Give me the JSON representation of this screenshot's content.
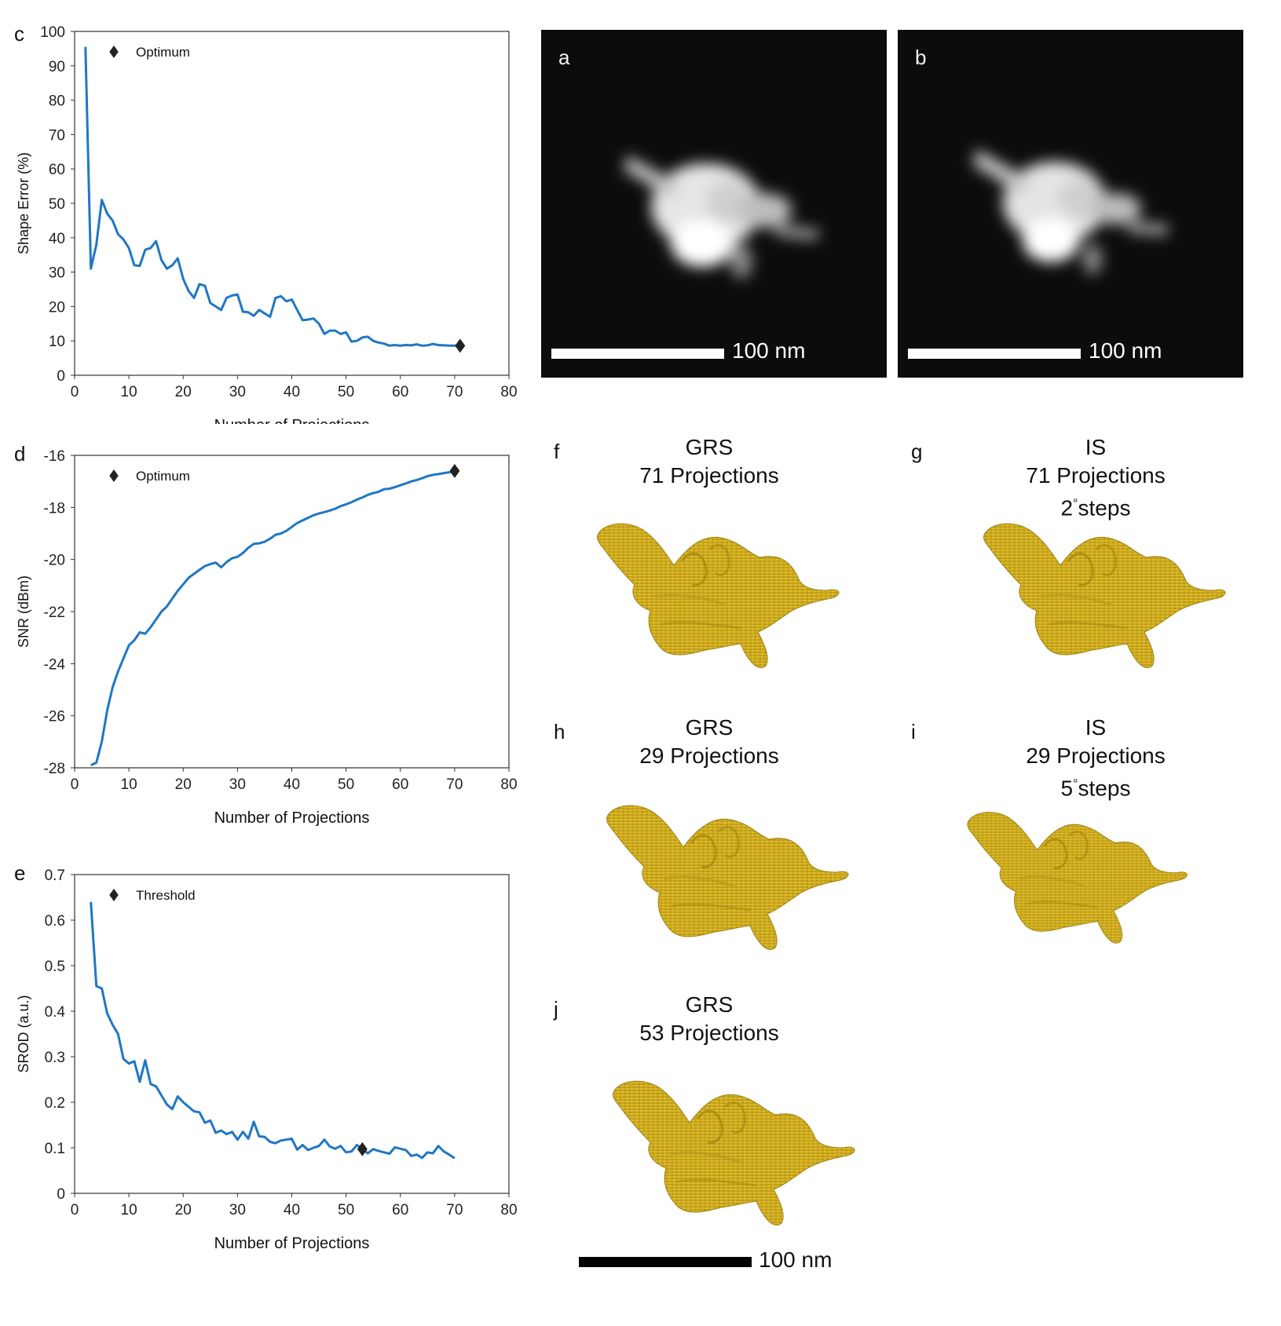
{
  "chart_data": [
    {
      "id": "c",
      "type": "line",
      "panel_label": "c",
      "xlabel": "Number of Projections",
      "ylabel": "Shape Error (%)",
      "xlim": [
        0,
        80
      ],
      "ylim": [
        0,
        100
      ],
      "xticks": [
        0,
        10,
        20,
        30,
        40,
        50,
        60,
        70,
        80
      ],
      "yticks": [
        0,
        10,
        20,
        30,
        40,
        50,
        60,
        70,
        80,
        90,
        100
      ],
      "ytick_labels": [
        "0",
        "10",
        "20",
        "30",
        "40",
        "50",
        "60",
        "70",
        "80",
        "90",
        "100"
      ],
      "legend": {
        "label": "Optimum",
        "position": "top-left"
      },
      "color": "#1f77c4",
      "series": [
        {
          "name": "Shape Error",
          "x": [
            2,
            3,
            4,
            5,
            6,
            7,
            8,
            9,
            10,
            11,
            12,
            13,
            14,
            15,
            16,
            17,
            18,
            19,
            20,
            21,
            22,
            23,
            24,
            25,
            26,
            27,
            28,
            29,
            30,
            31,
            32,
            33,
            34,
            35,
            36,
            37,
            38,
            39,
            40,
            41,
            42,
            43,
            44,
            45,
            46,
            47,
            48,
            49,
            50,
            51,
            52,
            53,
            54,
            55,
            56,
            57,
            58,
            59,
            60,
            61,
            62,
            63,
            64,
            65,
            66,
            67,
            68,
            69,
            70,
            71
          ],
          "y": [
            95.5,
            31,
            38,
            51,
            47,
            45,
            41,
            39.5,
            37,
            32,
            31.8,
            36.5,
            37,
            39,
            33.5,
            31,
            32,
            34,
            28,
            24.5,
            22.5,
            26.5,
            26,
            21,
            20,
            19,
            22.5,
            23.2,
            23.5,
            18.5,
            18.3,
            17.3,
            19,
            18,
            17,
            22.5,
            23,
            21.5,
            22,
            19,
            16,
            16.2,
            16.5,
            15,
            12,
            13,
            13,
            12,
            12.5,
            9.8,
            10,
            11,
            11.2,
            10,
            9.5,
            9.2,
            8.6,
            8.8,
            8.6,
            8.8,
            8.7,
            9,
            8.6,
            8.7,
            9.1,
            8.8,
            8.7,
            8.6,
            8.6,
            8.6
          ]
        }
      ],
      "marker": {
        "x": 71,
        "y": 8.6,
        "label": "Optimum"
      }
    },
    {
      "id": "d",
      "type": "line",
      "panel_label": "d",
      "xlabel": "Number of Projections",
      "ylabel": "SNR (dBm)",
      "xlim": [
        0,
        80
      ],
      "ylim": [
        -28,
        -16
      ],
      "xticks": [
        0,
        10,
        20,
        30,
        40,
        50,
        60,
        70,
        80
      ],
      "yticks": [
        -28,
        -26,
        -24,
        -22,
        -20,
        -18,
        -16
      ],
      "ytick_labels": [
        "-28",
        "-26",
        "-24",
        "-22",
        "-20",
        "-18",
        "-16"
      ],
      "legend": {
        "label": "Optimum",
        "position": "top-left"
      },
      "color": "#1f77c4",
      "series": [
        {
          "name": "SNR",
          "x": [
            3,
            4,
            5,
            6,
            7,
            8,
            9,
            10,
            11,
            12,
            13,
            14,
            15,
            16,
            17,
            18,
            19,
            20,
            21,
            22,
            23,
            24,
            25,
            26,
            27,
            28,
            29,
            30,
            31,
            32,
            33,
            34,
            35,
            36,
            37,
            38,
            39,
            40,
            41,
            42,
            43,
            44,
            45,
            46,
            47,
            48,
            49,
            50,
            51,
            52,
            53,
            54,
            55,
            56,
            57,
            58,
            59,
            60,
            61,
            62,
            63,
            64,
            65,
            66,
            67,
            68,
            69,
            70
          ],
          "y": [
            -27.9,
            -27.8,
            -27,
            -25.8,
            -24.9,
            -24.3,
            -23.8,
            -23.3,
            -23.1,
            -22.8,
            -22.85,
            -22.6,
            -22.3,
            -22,
            -21.8,
            -21.5,
            -21.2,
            -20.95,
            -20.7,
            -20.55,
            -20.4,
            -20.25,
            -20.18,
            -20.12,
            -20.3,
            -20.1,
            -19.95,
            -19.9,
            -19.75,
            -19.55,
            -19.4,
            -19.38,
            -19.32,
            -19.2,
            -19.05,
            -19,
            -18.9,
            -18.75,
            -18.6,
            -18.5,
            -18.4,
            -18.3,
            -18.23,
            -18.18,
            -18.12,
            -18.05,
            -17.95,
            -17.88,
            -17.8,
            -17.7,
            -17.62,
            -17.52,
            -17.45,
            -17.4,
            -17.3,
            -17.28,
            -17.22,
            -17.15,
            -17.08,
            -17,
            -16.95,
            -16.88,
            -16.8,
            -16.75,
            -16.72,
            -16.68,
            -16.65,
            -16.6
          ]
        }
      ],
      "marker": {
        "x": 70,
        "y": -16.6,
        "label": "Optimum"
      }
    },
    {
      "id": "e",
      "type": "line",
      "panel_label": "e",
      "xlabel": "Number of Projections",
      "ylabel": "SROD (a.u.)",
      "xlim": [
        0,
        80
      ],
      "ylim": [
        0,
        0.7
      ],
      "xticks": [
        0,
        10,
        20,
        30,
        40,
        50,
        60,
        70,
        80
      ],
      "yticks": [
        0,
        0.1,
        0.2,
        0.3,
        0.4,
        0.5,
        0.6,
        0.7
      ],
      "ytick_labels": [
        "0",
        "0.1",
        "0.2",
        "0.3",
        "0.4",
        "0.5",
        "0.6",
        "0.7"
      ],
      "legend": {
        "label": "Threshold",
        "position": "top-left"
      },
      "color": "#1f77c4",
      "series": [
        {
          "name": "SROD",
          "x": [
            3,
            4,
            5,
            6,
            7,
            8,
            9,
            10,
            11,
            12,
            13,
            14,
            15,
            16,
            17,
            18,
            19,
            20,
            21,
            22,
            23,
            24,
            25,
            26,
            27,
            28,
            29,
            30,
            31,
            32,
            33,
            34,
            35,
            36,
            37,
            38,
            39,
            40,
            41,
            42,
            43,
            44,
            45,
            46,
            47,
            48,
            49,
            50,
            51,
            52,
            53,
            54,
            55,
            56,
            57,
            58,
            59,
            60,
            61,
            62,
            63,
            64,
            65,
            66,
            67,
            68,
            69,
            70
          ],
          "y": [
            0.64,
            0.455,
            0.45,
            0.395,
            0.37,
            0.35,
            0.295,
            0.285,
            0.29,
            0.245,
            0.292,
            0.24,
            0.235,
            0.215,
            0.195,
            0.185,
            0.213,
            0.2,
            0.19,
            0.18,
            0.178,
            0.155,
            0.16,
            0.133,
            0.138,
            0.13,
            0.135,
            0.118,
            0.135,
            0.12,
            0.157,
            0.125,
            0.124,
            0.113,
            0.11,
            0.116,
            0.118,
            0.12,
            0.096,
            0.106,
            0.095,
            0.1,
            0.104,
            0.118,
            0.103,
            0.098,
            0.104,
            0.09,
            0.092,
            0.106,
            0.097,
            0.088,
            0.097,
            0.093,
            0.09,
            0.087,
            0.101,
            0.098,
            0.095,
            0.082,
            0.085,
            0.078,
            0.09,
            0.088,
            0.104,
            0.092,
            0.085,
            0.077
          ]
        }
      ],
      "marker": {
        "x": 53,
        "y": 0.097,
        "label": "Threshold"
      }
    }
  ],
  "em_panels": [
    {
      "letter": "a",
      "scale_label": "100 nm"
    },
    {
      "letter": "b",
      "scale_label": "100 nm"
    }
  ],
  "reconstructions": [
    {
      "letter": "f",
      "title_line1": "GRS",
      "title_line2": "71 Projections",
      "title_line3": ""
    },
    {
      "letter": "g",
      "title_line1": "IS",
      "title_line2": "71 Projections",
      "step_value": "2",
      "step_unit": "°",
      "step_word": "steps"
    },
    {
      "letter": "h",
      "title_line1": "GRS",
      "title_line2": "29 Projections",
      "title_line3": ""
    },
    {
      "letter": "i",
      "title_line1": "IS",
      "title_line2": "29 Projections",
      "step_value": "5",
      "step_unit": "°",
      "step_word": "steps"
    },
    {
      "letter": "j",
      "title_line1": "GRS",
      "title_line2": "53 Projections",
      "title_line3": ""
    }
  ],
  "bottom_scale": {
    "label": "100 nm"
  },
  "colors": {
    "line": "#1f77c4",
    "gold": "#d4b21e",
    "gold_dark": "#a88a12",
    "marker": "#222222"
  }
}
